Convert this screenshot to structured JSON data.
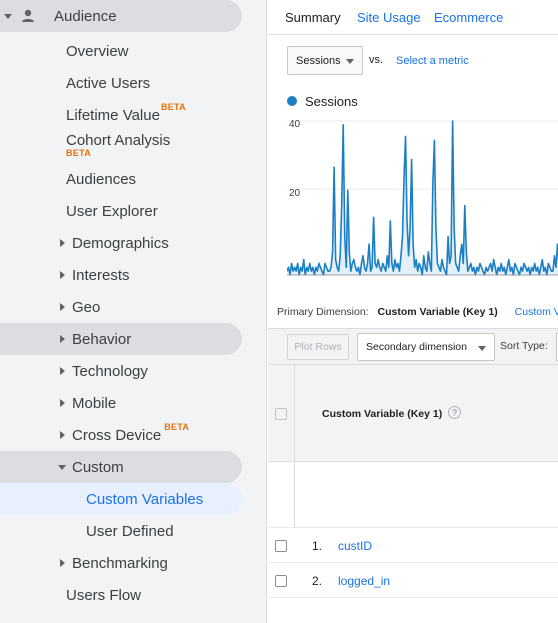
{
  "sidebar": {
    "audience": "Audience",
    "overview": "Overview",
    "active_users": "Active Users",
    "lifetime_value": "Lifetime Value",
    "lifetime_value_badge": "BETA",
    "cohort_analysis": "Cohort Analysis",
    "cohort_analysis_badge": "BETA",
    "audiences": "Audiences",
    "user_explorer": "User Explorer",
    "demographics": "Demographics",
    "interests": "Interests",
    "geo": "Geo",
    "behavior": "Behavior",
    "technology": "Technology",
    "mobile": "Mobile",
    "cross_device": "Cross Device",
    "cross_device_badge": "BETA",
    "custom": "Custom",
    "custom_variables": "Custom Variables",
    "user_defined": "User Defined",
    "benchmarking": "Benchmarking",
    "users_flow": "Users Flow"
  },
  "tabs": {
    "summary": "Summary",
    "site_usage": "Site Usage",
    "ecommerce": "Ecommerce"
  },
  "metric": {
    "selected": "Sessions",
    "vs": "vs.",
    "select_metric": "Select a metric"
  },
  "chart_data": {
    "type": "area",
    "series": [
      {
        "name": "Sessions",
        "color": "#1c7fc4"
      }
    ],
    "yticks": [
      "40",
      "20"
    ],
    "ylim": [
      0,
      44
    ],
    "values": [
      1,
      2,
      0,
      3,
      1,
      2,
      1,
      3,
      0,
      2,
      1,
      4,
      0,
      2,
      1,
      3,
      1,
      2,
      0,
      2,
      1,
      3,
      2,
      1,
      0,
      3,
      2,
      1,
      1,
      2,
      6,
      28,
      4,
      2,
      1,
      5,
      18,
      39,
      10,
      2,
      22,
      6,
      1,
      3,
      4,
      2,
      1,
      2,
      0,
      3,
      5,
      2,
      1,
      3,
      8,
      1,
      2,
      15,
      3,
      2,
      4,
      2,
      1,
      3,
      2,
      1,
      5,
      2,
      14,
      3,
      1,
      4,
      2,
      3,
      1,
      5,
      10,
      25,
      36,
      14,
      5,
      12,
      30,
      8,
      2,
      4,
      1,
      3,
      2,
      0,
      5,
      2,
      1,
      6,
      3,
      1,
      24,
      35,
      12,
      3,
      2,
      1,
      4,
      2,
      1,
      0,
      10,
      3,
      5,
      40,
      12,
      3,
      2,
      1,
      5,
      8,
      3,
      18,
      6,
      1,
      2,
      3,
      1,
      2,
      0,
      2,
      1,
      3,
      2,
      1,
      0,
      2,
      1,
      2,
      3,
      1,
      4,
      2,
      0,
      2,
      1,
      3,
      1,
      2,
      0,
      2,
      4,
      1,
      2,
      0,
      3,
      2,
      1,
      0,
      2,
      1,
      3,
      2,
      1,
      2,
      0,
      2,
      1,
      3,
      1,
      2,
      0,
      2,
      4,
      1,
      2,
      0,
      3,
      2,
      1,
      1,
      5,
      2,
      8,
      3
    ],
    "line_color": "#1c7fc4",
    "fill_color": "#e3f0fa"
  },
  "primary_dimension": {
    "label": "Primary Dimension:",
    "current": "Custom Variable (Key 1)",
    "other": "Custom V"
  },
  "toolbar": {
    "plot_rows": "Plot Rows",
    "secondary_dimension": "Secondary dimension",
    "sort_type": "Sort Type:"
  },
  "table": {
    "column_title": "Custom Variable (Key 1)",
    "help": "?",
    "rows": [
      {
        "num": "1.",
        "value": "custID"
      },
      {
        "num": "2.",
        "value": "logged_in"
      }
    ]
  }
}
